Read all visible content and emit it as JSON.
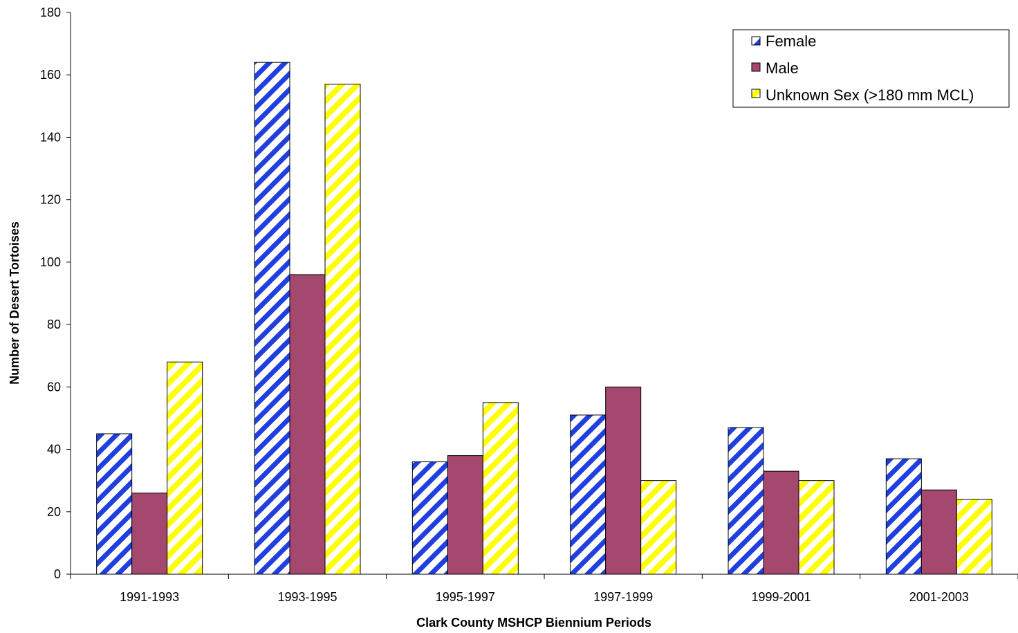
{
  "chart_data": {
    "type": "bar",
    "categories": [
      "1991-1993",
      "1993-1995",
      "1995-1997",
      "1997-1999",
      "1999-2001",
      "2001-2003"
    ],
    "series": [
      {
        "name": "Female",
        "values": [
          45,
          164,
          36,
          51,
          47,
          37
        ],
        "pattern": "diagonal-hatch",
        "color": "#1f3fe0"
      },
      {
        "name": "Male",
        "values": [
          26,
          96,
          38,
          60,
          33,
          27
        ],
        "pattern": "solid",
        "color": "#a4486f"
      },
      {
        "name": "Unknown Sex (>180 mm MCL)",
        "values": [
          68,
          157,
          55,
          30,
          30,
          24
        ],
        "pattern": "diagonal-hatch",
        "color": "#ffff00"
      }
    ],
    "xlabel": "Clark County MSHCP Biennium Periods",
    "ylabel": "Number of Desert Tortoises",
    "ylim": [
      0,
      180
    ],
    "yticks": [
      0,
      20,
      40,
      60,
      80,
      100,
      120,
      140,
      160,
      180
    ],
    "grid": false,
    "legend_position": "top-right"
  }
}
